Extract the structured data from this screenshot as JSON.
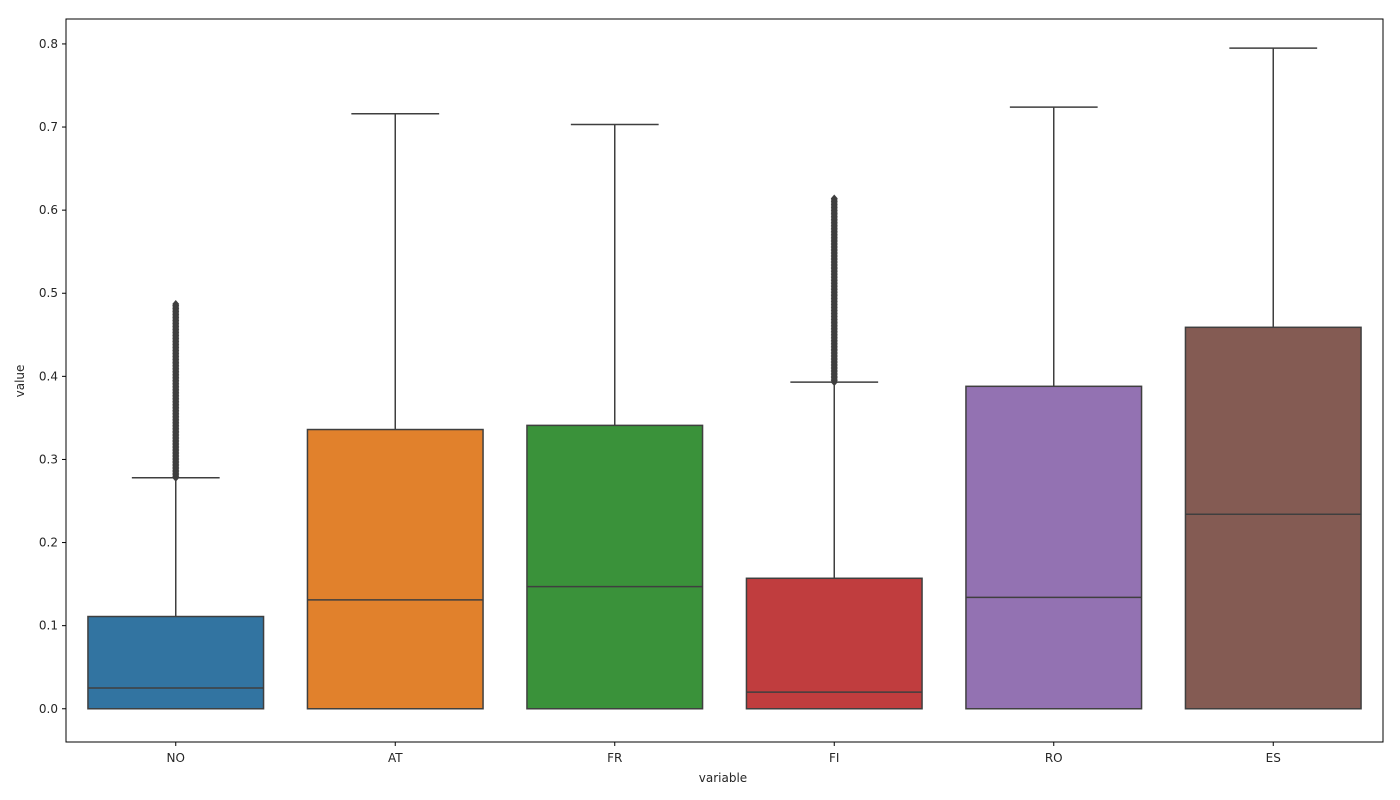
{
  "chart_data": {
    "type": "box",
    "xlabel": "variable",
    "ylabel": "value",
    "ylim": [
      -0.04,
      0.83
    ],
    "yticks": [
      0.0,
      0.1,
      0.2,
      0.3,
      0.4,
      0.5,
      0.6,
      0.7,
      0.8
    ],
    "ytick_labels": [
      "0.0",
      "0.1",
      "0.2",
      "0.3",
      "0.4",
      "0.5",
      "0.6",
      "0.7",
      "0.8"
    ],
    "grid": false,
    "edge_color": "#3f3f3f",
    "categories": [
      "NO",
      "AT",
      "FR",
      "FI",
      "RO",
      "ES"
    ],
    "boxes": [
      {
        "label": "NO",
        "color": "#3274a1",
        "whisker_low": 0.0,
        "q1": 0.0,
        "median": 0.025,
        "q3": 0.111,
        "whisker_high": 0.278,
        "outliers_range": [
          0.278,
          0.487
        ]
      },
      {
        "label": "AT",
        "color": "#e1812c",
        "whisker_low": 0.0,
        "q1": 0.0,
        "median": 0.131,
        "q3": 0.336,
        "whisker_high": 0.716,
        "outliers_range": null
      },
      {
        "label": "FR",
        "color": "#3a923a",
        "whisker_low": 0.0,
        "q1": 0.0,
        "median": 0.147,
        "q3": 0.341,
        "whisker_high": 0.703,
        "outliers_range": null
      },
      {
        "label": "FI",
        "color": "#c03d3e",
        "whisker_low": 0.0,
        "q1": 0.0,
        "median": 0.02,
        "q3": 0.157,
        "whisker_high": 0.393,
        "outliers_range": [
          0.393,
          0.614
        ]
      },
      {
        "label": "RO",
        "color": "#9372b2",
        "whisker_low": 0.0,
        "q1": 0.0,
        "median": 0.134,
        "q3": 0.388,
        "whisker_high": 0.724,
        "outliers_range": null
      },
      {
        "label": "ES",
        "color": "#845b53",
        "whisker_low": 0.0,
        "q1": 0.0,
        "median": 0.234,
        "q3": 0.459,
        "whisker_high": 0.795,
        "outliers_range": null
      }
    ]
  }
}
